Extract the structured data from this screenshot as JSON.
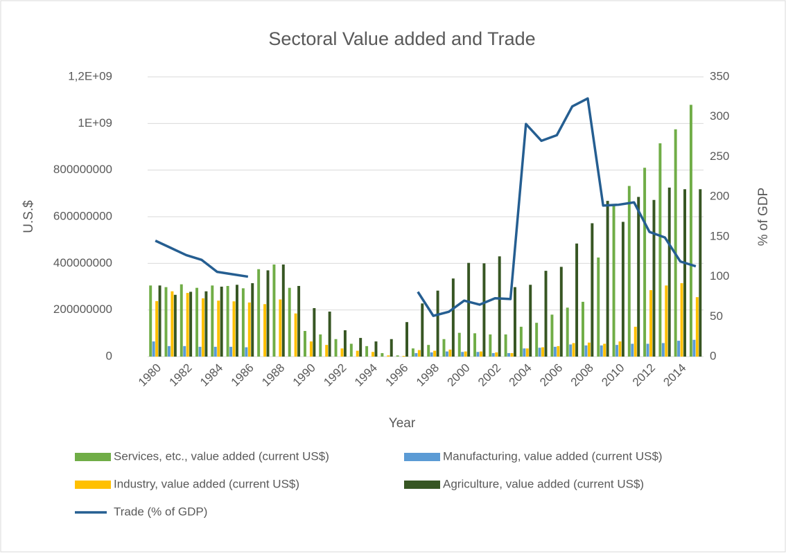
{
  "chart_data": {
    "type": "bar",
    "title": "Sectoral Value added and Trade",
    "x_label": "Year",
    "y_label": "U.S.$",
    "y2_label": "% of GDP",
    "categories": [
      "1980",
      null,
      "1982",
      null,
      "1984",
      null,
      "1986",
      null,
      "1988",
      null,
      "1990",
      null,
      "1992",
      null,
      "1994",
      null,
      "1996",
      null,
      "1998",
      null,
      "2000",
      null,
      "2002",
      null,
      "2004",
      null,
      "2006",
      null,
      "2008",
      null,
      "2010",
      null,
      "2012",
      null,
      "2014",
      null
    ],
    "series": [
      {
        "name": "Services, etc., value added (current US$)",
        "color": "#70ad47",
        "values": [
          305000000.0,
          298000000.0,
          310000000.0,
          295000000.0,
          305000000.0,
          303000000.0,
          293000000.0,
          375000000.0,
          395000000.0,
          295000000.0,
          110000000.0,
          95000000.0,
          75000000.0,
          55000000.0,
          45000000.0,
          15000000.0,
          5000000.0,
          35000000.0,
          50000000.0,
          75000000.0,
          102000000.0,
          100000000.0,
          95000000.0,
          95000000.0,
          128000000.0,
          145000000.0,
          180000000.0,
          210000000.0,
          235000000.0,
          425000000.0,
          655000000.0,
          732000000.0,
          810000000.0,
          915000000.0,
          975000000.0,
          1080000000.0
        ]
      },
      {
        "name": "Manufacturing, value added (current US$)",
        "color": "#5b9bd5",
        "values": [
          65000000.0,
          45000000.0,
          45000000.0,
          42000000.0,
          42000000.0,
          42000000.0,
          40000000.0,
          null,
          null,
          null,
          null,
          null,
          null,
          null,
          null,
          null,
          null,
          15000000.0,
          18000000.0,
          22000000.0,
          20000000.0,
          20000000.0,
          15000000.0,
          15000000.0,
          35000000.0,
          38000000.0,
          42000000.0,
          52000000.0,
          48000000.0,
          48000000.0,
          50000000.0,
          55000000.0,
          55000000.0,
          58000000.0,
          68000000.0,
          72000000.0
        ]
      },
      {
        "name": "Industry, value added (current US$)",
        "color": "#ffc000",
        "values": [
          238000000.0,
          280000000.0,
          273000000.0,
          250000000.0,
          240000000.0,
          237000000.0,
          232000000.0,
          225000000.0,
          245000000.0,
          185000000.0,
          65000000.0,
          50000000.0,
          35000000.0,
          25000000.0,
          20000000.0,
          5000000.0,
          3000000.0,
          28000000.0,
          25000000.0,
          30000000.0,
          22000000.0,
          22000000.0,
          18000000.0,
          15000000.0,
          35000000.0,
          40000000.0,
          45000000.0,
          58000000.0,
          60000000.0,
          55000000.0,
          65000000.0,
          128000000.0,
          285000000.0,
          305000000.0,
          315000000.0,
          255000000.0
        ]
      },
      {
        "name": "Agriculture, value added (current US$)",
        "color": "#375623",
        "values": [
          305000000.0,
          265000000.0,
          278000000.0,
          280000000.0,
          300000000.0,
          308000000.0,
          315000000.0,
          370000000.0,
          395000000.0,
          303000000.0,
          208000000.0,
          193000000.0,
          113000000.0,
          80000000.0,
          65000000.0,
          75000000.0,
          148000000.0,
          228000000.0,
          283000000.0,
          335000000.0,
          402000000.0,
          400000000.0,
          430000000.0,
          298000000.0,
          308000000.0,
          368000000.0,
          385000000.0,
          485000000.0,
          572000000.0,
          668000000.0,
          578000000.0,
          685000000.0,
          672000000.0,
          725000000.0,
          718000000.0,
          718000000.0
        ]
      },
      {
        "name": "Trade (% of GDP)",
        "color": "#255e91",
        "type": "line",
        "axis": "y2",
        "values": [
          145,
          136,
          127,
          121,
          106,
          103,
          100,
          null,
          null,
          null,
          null,
          null,
          null,
          null,
          null,
          null,
          null,
          81,
          51,
          56,
          70,
          65,
          73,
          72,
          291,
          270,
          277,
          313,
          323,
          189,
          190,
          193,
          156,
          149,
          119,
          113
        ]
      }
    ],
    "ylim": [
      0,
      1200000000
    ],
    "yticks": [
      0,
      200000000,
      400000000,
      600000000,
      800000000,
      {
        "value": 1000000000,
        "label": "1E+09"
      },
      {
        "value": 1200000000,
        "label": "1,2E+09"
      }
    ],
    "y2lim": [
      0,
      350
    ],
    "y2ticks": [
      0,
      50,
      100,
      150,
      200,
      250,
      300,
      350
    ],
    "grid": true,
    "legend": "bottom"
  }
}
